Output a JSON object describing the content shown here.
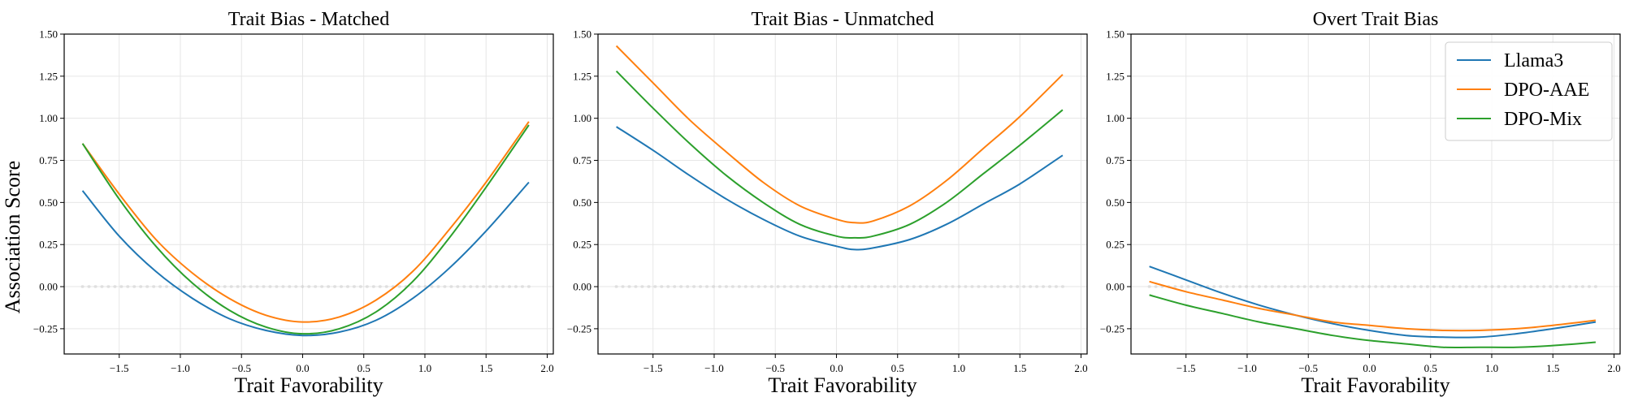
{
  "figure": {
    "ylabel": "Association Score",
    "xlabel": "Trait Favorability"
  },
  "legend": {
    "position": "top-right",
    "entries": [
      {
        "name": "Llama3",
        "color": "#1f77b4"
      },
      {
        "name": "DPO-AAE",
        "color": "#ff7f0e"
      },
      {
        "name": "DPO-Mix",
        "color": "#2ca02c"
      }
    ]
  },
  "chart_data": [
    {
      "type": "line",
      "title": "Trait Bias - Matched",
      "xlabel": "Trait Favorability",
      "ylabel": "Association Score",
      "xlim": [
        -1.95,
        2.05
      ],
      "ylim": [
        -0.4,
        1.5
      ],
      "xticks": [
        "−1.5",
        "−1.0",
        "−0.5",
        "0.0",
        "0.5",
        "1.0",
        "1.5",
        "2.0"
      ],
      "yticks": [
        "−0.25",
        "0.00",
        "0.25",
        "0.50",
        "0.75",
        "1.00",
        "1.25",
        "1.50"
      ],
      "grid": true,
      "x": [
        -1.8,
        -1.5,
        -1.2,
        -0.9,
        -0.6,
        -0.3,
        0.0,
        0.3,
        0.6,
        0.9,
        1.2,
        1.5,
        1.85
      ],
      "series": [
        {
          "name": "Llama3",
          "color": "#1f77b4",
          "values": [
            0.57,
            0.3,
            0.09,
            -0.07,
            -0.19,
            -0.26,
            -0.29,
            -0.27,
            -0.2,
            -0.07,
            0.11,
            0.33,
            0.62
          ]
        },
        {
          "name": "DPO-AAE",
          "color": "#ff7f0e",
          "values": [
            0.85,
            0.55,
            0.28,
            0.08,
            -0.07,
            -0.17,
            -0.21,
            -0.18,
            -0.08,
            0.09,
            0.34,
            0.62,
            0.98
          ]
        },
        {
          "name": "DPO-Mix",
          "color": "#2ca02c",
          "values": [
            0.85,
            0.52,
            0.24,
            0.02,
            -0.14,
            -0.24,
            -0.28,
            -0.25,
            -0.15,
            0.03,
            0.29,
            0.59,
            0.96
          ]
        }
      ],
      "baseline_dots": {
        "y": 0.0,
        "x_range": [
          -1.8,
          1.85
        ]
      }
    },
    {
      "type": "line",
      "title": "Trait Bias - Unmatched",
      "xlabel": "Trait Favorability",
      "ylabel": "",
      "xlim": [
        -1.95,
        2.05
      ],
      "ylim": [
        -0.4,
        1.5
      ],
      "xticks": [
        "−1.5",
        "−1.0",
        "−0.5",
        "0.0",
        "0.5",
        "1.0",
        "1.5",
        "2.0"
      ],
      "yticks": [
        "−0.25",
        "0.00",
        "0.25",
        "0.50",
        "0.75",
        "1.00",
        "1.25",
        "1.50"
      ],
      "grid": true,
      "x": [
        -1.8,
        -1.5,
        -1.2,
        -0.9,
        -0.6,
        -0.3,
        0.0,
        0.15,
        0.3,
        0.6,
        0.9,
        1.2,
        1.5,
        1.85
      ],
      "series": [
        {
          "name": "Llama3",
          "color": "#1f77b4",
          "values": [
            0.95,
            0.81,
            0.66,
            0.52,
            0.4,
            0.3,
            0.24,
            0.22,
            0.23,
            0.28,
            0.37,
            0.49,
            0.61,
            0.78
          ]
        },
        {
          "name": "DPO-AAE",
          "color": "#ff7f0e",
          "values": [
            1.43,
            1.21,
            0.99,
            0.8,
            0.62,
            0.48,
            0.4,
            0.38,
            0.39,
            0.48,
            0.63,
            0.82,
            1.01,
            1.26
          ]
        },
        {
          "name": "DPO-Mix",
          "color": "#2ca02c",
          "values": [
            1.28,
            1.06,
            0.85,
            0.66,
            0.5,
            0.37,
            0.3,
            0.29,
            0.3,
            0.37,
            0.5,
            0.67,
            0.84,
            1.05
          ]
        }
      ],
      "baseline_dots": {
        "y": 0.0,
        "x_range": [
          -1.8,
          1.85
        ]
      }
    },
    {
      "type": "line",
      "title": "Overt Trait Bias",
      "xlabel": "Trait Favorability",
      "ylabel": "",
      "xlim": [
        -1.95,
        2.05
      ],
      "ylim": [
        -0.4,
        1.5
      ],
      "xticks": [
        "−1.5",
        "−1.0",
        "−0.5",
        "0.0",
        "0.5",
        "1.0",
        "1.5",
        "2.0"
      ],
      "yticks": [
        "−0.25",
        "0.00",
        "0.25",
        "0.50",
        "0.75",
        "1.00",
        "1.25",
        "1.50"
      ],
      "grid": true,
      "x": [
        -1.8,
        -1.5,
        -1.2,
        -0.9,
        -0.6,
        -0.3,
        0.0,
        0.3,
        0.6,
        0.9,
        1.2,
        1.5,
        1.85
      ],
      "series": [
        {
          "name": "Llama3",
          "color": "#1f77b4",
          "values": [
            0.12,
            0.04,
            -0.04,
            -0.11,
            -0.17,
            -0.22,
            -0.26,
            -0.29,
            -0.3,
            -0.3,
            -0.28,
            -0.25,
            -0.21
          ]
        },
        {
          "name": "DPO-AAE",
          "color": "#ff7f0e",
          "values": [
            0.03,
            -0.03,
            -0.08,
            -0.13,
            -0.17,
            -0.21,
            -0.23,
            -0.25,
            -0.26,
            -0.26,
            -0.25,
            -0.23,
            -0.2
          ]
        },
        {
          "name": "DPO-Mix",
          "color": "#2ca02c",
          "values": [
            -0.05,
            -0.11,
            -0.16,
            -0.21,
            -0.25,
            -0.29,
            -0.32,
            -0.34,
            -0.36,
            -0.36,
            -0.36,
            -0.35,
            -0.33
          ]
        }
      ],
      "baseline_dots": {
        "y": 0.0,
        "x_range": [
          -1.8,
          1.85
        ]
      }
    }
  ]
}
